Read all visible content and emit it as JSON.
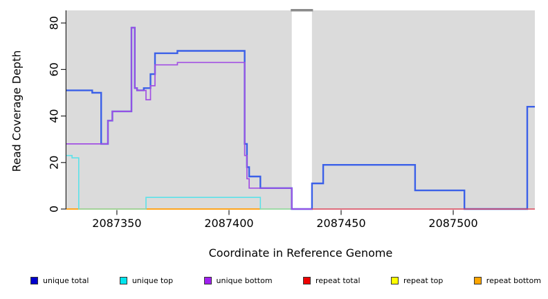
{
  "figure": {
    "xlabel": "Coordinate in Reference Genome",
    "ylabel": "Read Coverage Depth"
  },
  "chart_data": {
    "type": "line",
    "subtype": "step-coverage",
    "title": "",
    "xlabel": "Coordinate in Reference Genome",
    "ylabel": "Read Coverage Depth",
    "xlim": [
      2087327.5,
      2087536.4
    ],
    "ylim": [
      0,
      80
    ],
    "x_ticks": [
      2087350,
      2087400,
      2087450,
      2087500
    ],
    "y_ticks": [
      0,
      20,
      40,
      60,
      80
    ],
    "grid": false,
    "background": "#DBDBDB",
    "masked_region": {
      "start": 2087428,
      "end": 2087437,
      "fill": "#FFFFFF",
      "cap_color": "#8A8A8A"
    },
    "zero_line_overlap": {
      "color": "#9ED89E",
      "segments": [
        [
          2087333,
          2087363
        ],
        [
          2087414,
          2087428
        ]
      ]
    },
    "draw_order": [
      "repeat top",
      "repeat bottom",
      "unique top",
      "unique total",
      "unique bottom",
      "repeat total"
    ],
    "series": [
      {
        "name": "unique total",
        "color": "#3B60E8",
        "width": 2.4,
        "steps": [
          [
            2087327.5,
            51
          ],
          [
            2087339,
            50
          ],
          [
            2087343,
            28
          ],
          [
            2087346,
            38
          ],
          [
            2087348,
            42
          ],
          [
            2087356.5,
            78
          ],
          [
            2087358,
            52
          ],
          [
            2087359,
            51
          ],
          [
            2087362,
            52
          ],
          [
            2087365,
            58
          ],
          [
            2087367,
            67
          ],
          [
            2087377,
            68
          ],
          [
            2087407,
            28
          ],
          [
            2087408,
            18
          ],
          [
            2087409,
            14
          ],
          [
            2087414,
            9
          ],
          [
            2087428,
            0
          ],
          [
            2087437,
            11
          ],
          [
            2087442,
            19
          ],
          [
            2087483,
            8
          ],
          [
            2087505,
            0
          ],
          [
            2087533,
            44
          ],
          [
            2087536.4,
            44
          ]
        ]
      },
      {
        "name": "unique top",
        "color": "#5CE1E9",
        "width": 1.6,
        "steps": [
          [
            2087327.5,
            23
          ],
          [
            2087330,
            22
          ],
          [
            2087333,
            0
          ],
          [
            2087363,
            5
          ],
          [
            2087414,
            0
          ],
          [
            2087428,
            0
          ]
        ]
      },
      {
        "name": "unique bottom",
        "color": "#A24FE3",
        "width": 1.7,
        "steps": [
          [
            2087327.5,
            28
          ],
          [
            2087346,
            38
          ],
          [
            2087348,
            42
          ],
          [
            2087356.5,
            78
          ],
          [
            2087358,
            52
          ],
          [
            2087359,
            51
          ],
          [
            2087363,
            47
          ],
          [
            2087365,
            53
          ],
          [
            2087367,
            62
          ],
          [
            2087377,
            63
          ],
          [
            2087407,
            23
          ],
          [
            2087408,
            13
          ],
          [
            2087409,
            9
          ],
          [
            2087428,
            0
          ],
          [
            2087437,
            0
          ]
        ]
      },
      {
        "name": "repeat total",
        "color": "#E0485C",
        "width": 1.6,
        "steps": [
          [
            2087437,
            0
          ],
          [
            2087536.4,
            0
          ]
        ]
      },
      {
        "name": "repeat top",
        "color": "#EEE34A",
        "width": 1.4,
        "steps": [
          [
            2087327.5,
            0
          ],
          [
            2087428,
            0
          ]
        ]
      },
      {
        "name": "repeat bottom",
        "color": "#FFA51E",
        "width": 2,
        "steps": [
          [
            2087327.5,
            0
          ],
          [
            2087414,
            0
          ]
        ]
      }
    ]
  },
  "legend": {
    "items": [
      {
        "label": "unique total",
        "color": "#0000CD"
      },
      {
        "label": "unique top",
        "color": "#00E5EE"
      },
      {
        "label": "unique bottom",
        "color": "#A020F0"
      },
      {
        "label": "repeat total",
        "color": "#EE0000"
      },
      {
        "label": "repeat top",
        "color": "#FFFF00"
      },
      {
        "label": "repeat bottom",
        "color": "#FFA500"
      }
    ]
  }
}
